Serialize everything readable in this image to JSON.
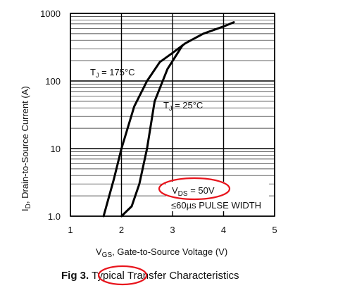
{
  "chart_data": {
    "type": "line",
    "caption_prefix": "Fig 3.",
    "caption_highlight": "Typical",
    "caption_rest": "Transfer Characteristics",
    "xlabel_v": "V",
    "xlabel_sub": "GS",
    "xlabel_rest": ", Gate-to-Source Voltage (V)",
    "ylabel_i": "I",
    "ylabel_sub": "D",
    "ylabel_rest": ", Drain-to-Source Current (A)",
    "x_ticks": [
      "1",
      "2",
      "3",
      "4",
      "5"
    ],
    "y_ticks": [
      "1.0",
      "10",
      "100",
      "1000"
    ],
    "xlim": [
      1,
      5
    ],
    "ylim": [
      1,
      1000
    ],
    "y_scale": "log",
    "grid": true,
    "series": [
      {
        "name_main": "T",
        "name_sub": "J",
        "name_rest": " = 175°C",
        "x": [
          1.65,
          1.85,
          2.0,
          2.25,
          2.5,
          2.75,
          3.0,
          3.25,
          3.6,
          4.0,
          4.2
        ],
        "y": [
          1.0,
          3.5,
          10,
          42,
          100,
          190,
          260,
          360,
          500,
          640,
          740
        ]
      },
      {
        "name_main": "T",
        "name_sub": "J",
        "name_rest": " = 25°C",
        "x": [
          2.0,
          2.2,
          2.35,
          2.5,
          2.65,
          2.9,
          3.2
        ],
        "y": [
          1.0,
          1.4,
          3.0,
          10,
          50,
          150,
          340
        ]
      }
    ],
    "annotation_v": "V",
    "annotation_sub": "DS",
    "annotation_rest": " = 50V",
    "pulse_note": "≤60µs PULSE WIDTH",
    "highlight_color": "#e8141c"
  }
}
